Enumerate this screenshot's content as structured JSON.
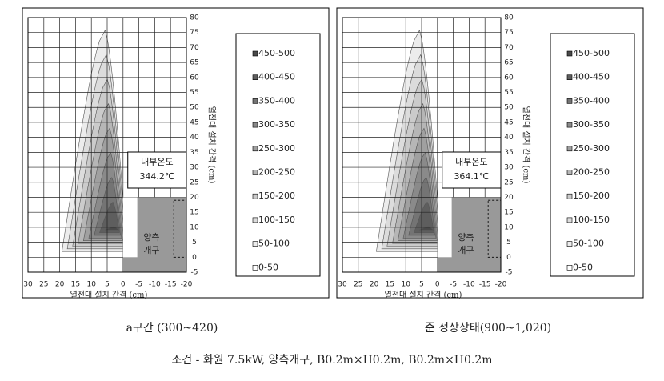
{
  "chart_data": [
    {
      "type": "contour",
      "caption": "a구간 (300~420)",
      "xlabel": "열전대 설치 간격 (cm)",
      "ylabel": "열전대 설치 간격 (cm)",
      "xlim": [
        30,
        -20
      ],
      "ylim": [
        -5,
        80
      ],
      "xticks": [
        30,
        25,
        20,
        15,
        10,
        5,
        0,
        -5,
        -10,
        -15,
        -20
      ],
      "yticks": [
        -5,
        0,
        5,
        10,
        15,
        20,
        25,
        30,
        35,
        40,
        45,
        50,
        55,
        60,
        65,
        70,
        75,
        80
      ],
      "grid": true,
      "legend": [
        {
          "label": "450-500",
          "color": "#4a4a4a"
        },
        {
          "label": "400-450",
          "color": "#5e5e5e"
        },
        {
          "label": "350-400",
          "color": "#747474"
        },
        {
          "label": "300-350",
          "color": "#8a8a8a"
        },
        {
          "label": "250-300",
          "color": "#a0a0a0"
        },
        {
          "label": "200-250",
          "color": "#b6b6b6"
        },
        {
          "label": "150-200",
          "color": "#cbcbcb"
        },
        {
          "label": "100-150",
          "color": "#dcdcdc"
        },
        {
          "label": "50-100",
          "color": "#ececec"
        },
        {
          "label": "0-50",
          "color": "#ffffff"
        }
      ],
      "annotation": [
        "내부온도",
        "344.2℃"
      ],
      "opening_label": [
        "양측",
        "개구"
      ]
    },
    {
      "type": "contour",
      "caption": "준 정상상태(900~1,020)",
      "xlabel": "열전대 설치 간격 (cm)",
      "ylabel": "열전대 설치 간격 (cm)",
      "xlim": [
        30,
        -20
      ],
      "ylim": [
        -5,
        80
      ],
      "xticks": [
        30,
        25,
        20,
        15,
        10,
        5,
        0,
        -5,
        -10,
        -15,
        -20
      ],
      "yticks": [
        -5,
        0,
        5,
        10,
        15,
        20,
        25,
        30,
        35,
        40,
        45,
        50,
        55,
        60,
        65,
        70,
        75,
        80
      ],
      "grid": true,
      "legend": [
        {
          "label": "450-500",
          "color": "#4a4a4a"
        },
        {
          "label": "400-450",
          "color": "#5e5e5e"
        },
        {
          "label": "350-400",
          "color": "#747474"
        },
        {
          "label": "300-350",
          "color": "#8a8a8a"
        },
        {
          "label": "250-300",
          "color": "#a0a0a0"
        },
        {
          "label": "200-250",
          "color": "#b6b6b6"
        },
        {
          "label": "150-200",
          "color": "#cbcbcb"
        },
        {
          "label": "100-150",
          "color": "#dcdcdc"
        },
        {
          "label": "50-100",
          "color": "#ececec"
        },
        {
          "label": "0-50",
          "color": "#ffffff"
        }
      ],
      "annotation": [
        "내부온도",
        "364.1℃"
      ],
      "opening_label": [
        "양측",
        "개구"
      ]
    }
  ],
  "figure_caption": "조건 - 화원 7.5kW, 양측개구, B0.2m×H0.2m, B0.2m×H0.2m"
}
